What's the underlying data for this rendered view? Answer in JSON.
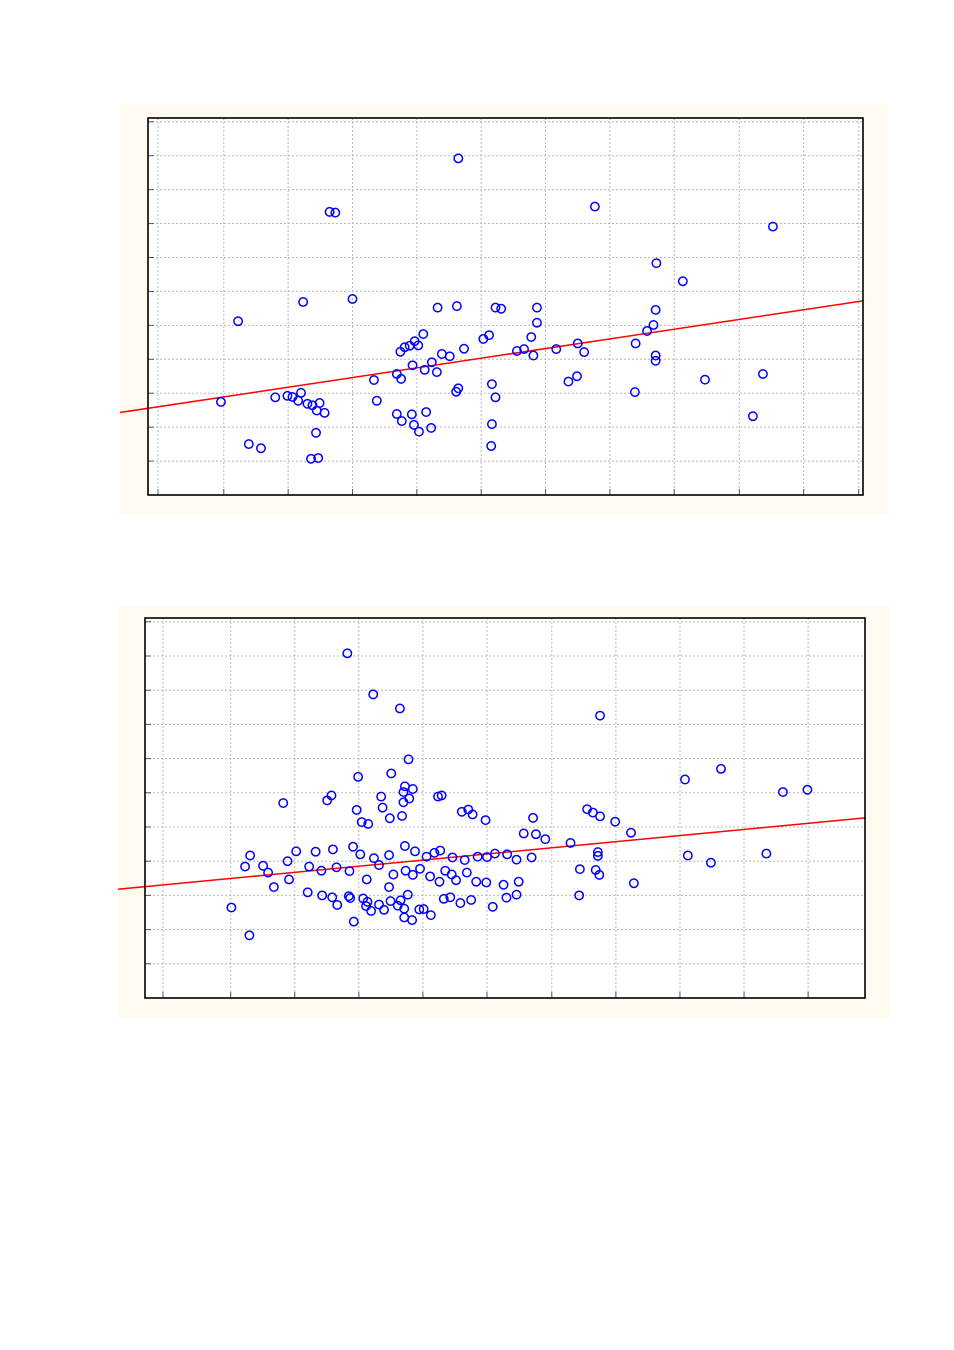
{
  "colors": {
    "background": "#fffaf0",
    "plot_area": "#ffffff",
    "frame": "#000000",
    "grid": "#b8b8b8",
    "points": "#0000ff",
    "fit_line": "#ff0000"
  },
  "chart_data": [
    {
      "type": "scatter",
      "title": "",
      "xlabel": "",
      "ylabel": "",
      "grid": true,
      "legend": "none",
      "xlim": [
        0,
        100
      ],
      "ylim": [
        0,
        100
      ],
      "xticks": [
        1.4,
        10.6,
        19.6,
        28.6,
        37.6,
        46.6,
        55.6,
        64.6,
        73.6,
        82.7,
        91.7,
        99.4
      ],
      "yticks": [
        9.0,
        18.0,
        27.0,
        36.0,
        45.0,
        54.0,
        63.0,
        72.0,
        81.0,
        90.0,
        99.0
      ],
      "series": [
        {
          "marker": "circle-open",
          "x": [
            43.4,
            25.4,
            62.5,
            87.4,
            71.1,
            74.8,
            28.6,
            12.6,
            21.7,
            26.2,
            40.5,
            43.2,
            48.6,
            49.4,
            54.4,
            54.4,
            71.0,
            70.7,
            69.8,
            53.6,
            38.5,
            37.3,
            36.6,
            35.9,
            35.3,
            37.8,
            39.7,
            42.2,
            41.1,
            44.2,
            46.9,
            47.7,
            51.6,
            52.6,
            57.1,
            60.1,
            61.0,
            68.2,
            71.0,
            71.0,
            31.6,
            34.8,
            35.4,
            37.0,
            38.7,
            40.4,
            43.1,
            43.4,
            48.1,
            48.6,
            53.9,
            58.8,
            60.0,
            68.1,
            77.9,
            84.6,
            86.0,
            10.2,
            17.8,
            19.5,
            20.2,
            21.0,
            21.4,
            22.3,
            23.0,
            23.6,
            24.0,
            24.7,
            32.0,
            34.8,
            35.5,
            36.9,
            37.2,
            37.9,
            38.9,
            39.6,
            48.1,
            48.0,
            23.5,
            14.1,
            15.8,
            22.8,
            23.8
          ],
          "y": [
            89.3,
            75.1,
            76.5,
            71.2,
            61.5,
            56.7,
            52.0,
            46.1,
            51.2,
            74.9,
            49.7,
            50.1,
            49.7,
            49.4,
            49.7,
            45.7,
            49.1,
            45.1,
            43.5,
            41.9,
            42.7,
            40.8,
            39.6,
            39.2,
            38.0,
            39.7,
            35.2,
            36.8,
            37.4,
            38.8,
            41.4,
            42.4,
            38.2,
            38.7,
            38.7,
            40.2,
            37.9,
            40.2,
            37.0,
            35.6,
            30.5,
            32.1,
            30.8,
            34.4,
            33.2,
            32.6,
            27.4,
            28.3,
            29.4,
            25.9,
            37.0,
            30.1,
            31.5,
            27.3,
            30.6,
            20.9,
            32.1,
            24.7,
            25.9,
            26.3,
            26.0,
            25.0,
            27.1,
            24.2,
            23.8,
            22.4,
            24.4,
            21.8,
            25.0,
            21.5,
            19.6,
            21.4,
            18.6,
            16.8,
            22.0,
            17.8,
            18.8,
            13.0,
            16.5,
            13.5,
            12.4,
            9.6,
            9.8
          ]
        }
      ],
      "fit_line": {
        "x": [
          0,
          100
        ],
        "y": [
          23.0,
          51.5
        ]
      }
    },
    {
      "type": "scatter",
      "title": "",
      "xlabel": "",
      "ylabel": "",
      "grid": true,
      "legend": "none",
      "xlim": [
        0,
        100
      ],
      "ylim": [
        0,
        100
      ],
      "xticks": [
        2.5,
        11.9,
        20.8,
        29.7,
        38.6,
        47.5,
        56.5,
        65.4,
        74.3,
        83.2,
        92.1
      ],
      "yticks": [
        9.0,
        18.0,
        27.0,
        36.0,
        45.0,
        54.0,
        63.0,
        72.0,
        81.0,
        90.0,
        99.0
      ],
      "series": [
        {
          "marker": "circle-open",
          "x": [
            28.1,
            31.7,
            35.4,
            63.2,
            36.6,
            34.2,
            29.6,
            88.6,
            75.0,
            80.0,
            92.0,
            19.2,
            25.3,
            25.9,
            32.8,
            35.9,
            36.1,
            37.2,
            40.7,
            41.2,
            53.9,
            61.4,
            62.2,
            63.2,
            65.3,
            67.5,
            33.0,
            29.4,
            30.1,
            31.0,
            34.0,
            35.7,
            35.9,
            36.7,
            44.9,
            44.0,
            45.5,
            47.3,
            52.6,
            54.3,
            55.6,
            59.1,
            62.9,
            62.9,
            75.4,
            86.3,
            78.6,
            14.6,
            16.4,
            21.0,
            23.7,
            26.1,
            28.9,
            29.9,
            31.8,
            33.9,
            36.1,
            37.5,
            39.1,
            40.2,
            41.0,
            42.7,
            44.4,
            46.2,
            47.5,
            48.6,
            50.3,
            51.6,
            53.7,
            60.4,
            62.6,
            63.1,
            67.9,
            13.9,
            17.1,
            19.8,
            22.8,
            24.5,
            26.6,
            28.4,
            30.8,
            32.5,
            34.5,
            36.2,
            37.2,
            38.2,
            39.6,
            40.9,
            41.7,
            42.6,
            43.2,
            44.7,
            46.0,
            47.4,
            49.8,
            51.9,
            20.0,
            22.6,
            24.6,
            26.7,
            28.5,
            30.9,
            32.5,
            34.1,
            36.0,
            38.7,
            42.4,
            43.8,
            45.3,
            48.3,
            50.2,
            51.6,
            60.3,
            17.9,
            26.0,
            28.3,
            30.3,
            31.4,
            33.2,
            35.1,
            36.0,
            37.1,
            38.1,
            39.7,
            14.5,
            12.0,
            36.5,
            41.5,
            35.5,
            30.7,
            29.0,
            33.9
          ],
          "y": [
            90.7,
            79.9,
            76.2,
            74.3,
            62.8,
            59.1,
            58.2,
            54.2,
            57.5,
            60.3,
            54.8,
            51.3,
            52.0,
            53.3,
            53.0,
            54.2,
            55.7,
            55.0,
            53.0,
            53.3,
            47.4,
            49.7,
            48.8,
            47.8,
            46.4,
            43.5,
            50.1,
            49.5,
            46.3,
            45.8,
            47.3,
            47.9,
            51.5,
            52.5,
            49.6,
            49.0,
            48.3,
            46.8,
            43.3,
            43.1,
            41.8,
            40.8,
            38.4,
            37.4,
            37.5,
            38.0,
            35.6,
            37.5,
            34.8,
            38.6,
            38.5,
            39.1,
            39.8,
            37.8,
            36.8,
            37.6,
            40.0,
            38.6,
            37.2,
            38.2,
            38.8,
            37.0,
            36.3,
            37.2,
            37.1,
            38.0,
            37.8,
            36.4,
            37.0,
            33.9,
            33.7,
            32.4,
            30.2,
            34.6,
            33.0,
            36.0,
            34.6,
            33.5,
            34.4,
            33.4,
            31.2,
            35.0,
            32.5,
            33.5,
            32.4,
            34.0,
            32.0,
            30.6,
            33.5,
            32.5,
            31.0,
            33.0,
            30.6,
            30.4,
            29.8,
            30.6,
            31.2,
            27.8,
            27.0,
            24.5,
            26.3,
            25.3,
            24.6,
            25.5,
            23.5,
            23.4,
            26.5,
            25.0,
            25.8,
            24.0,
            26.4,
            27.2,
            27.0,
            29.2,
            26.5,
            26.8,
            26.2,
            22.9,
            23.2,
            24.3,
            21.2,
            20.5,
            23.3,
            21.8,
            16.5,
            23.8,
            27.2,
            26.1,
            25.7,
            24.2,
            20.1,
            29.2
          ]
        }
      ],
      "fit_line": {
        "x": [
          0,
          100
        ],
        "y": [
          29.3,
          47.4
        ]
      }
    }
  ]
}
